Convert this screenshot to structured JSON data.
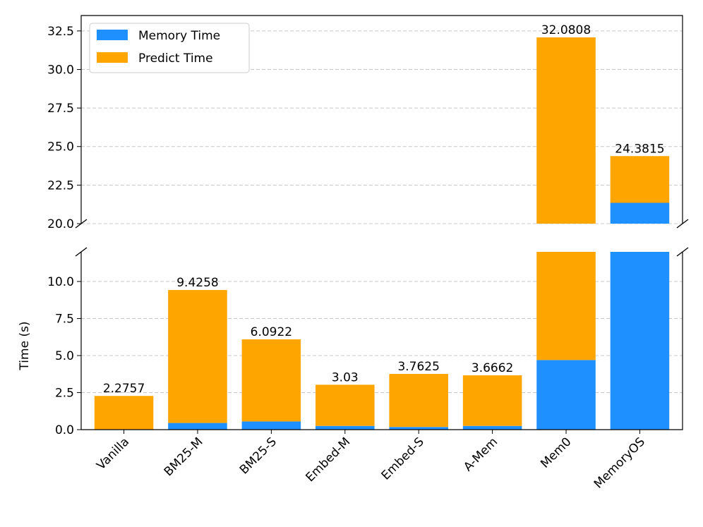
{
  "chart_data": {
    "type": "bar",
    "stacked": true,
    "broken_y_axis": true,
    "categories": [
      "Vanilla",
      "BM25-M",
      "BM25-S",
      "Embed-M",
      "Embed-S",
      "A-Mem",
      "Mem0",
      "MemoryOS"
    ],
    "series": [
      {
        "name": "Memory Time",
        "color": "#1e90ff",
        "values": [
          0.0,
          0.45,
          0.55,
          0.25,
          0.18,
          0.25,
          4.7,
          21.35
        ]
      },
      {
        "name": "Predict Time",
        "color": "#ffa500",
        "values": [
          2.2757,
          8.9758,
          5.5422,
          2.78,
          3.5825,
          3.4162,
          27.3808,
          3.0315
        ]
      }
    ],
    "totals": [
      2.2757,
      9.4258,
      6.0922,
      3.03,
      3.7625,
      3.6662,
      32.0808,
      24.3815
    ],
    "total_labels": [
      "2.2757",
      "9.4258",
      "6.0922",
      "3.03",
      "3.7625",
      "3.6662",
      "32.0808",
      "24.3815"
    ],
    "ylabel": "Time (s)",
    "upper_ylim": [
      20.0,
      33.5
    ],
    "lower_ylim": [
      0.0,
      12.0
    ],
    "upper_ticks": [
      "20.0",
      "22.5",
      "25.0",
      "27.5",
      "30.0",
      "32.5"
    ],
    "lower_ticks": [
      "0.0",
      "2.5",
      "5.0",
      "7.5",
      "10.0"
    ],
    "grid": "y-dashed",
    "legend": "top-left"
  }
}
